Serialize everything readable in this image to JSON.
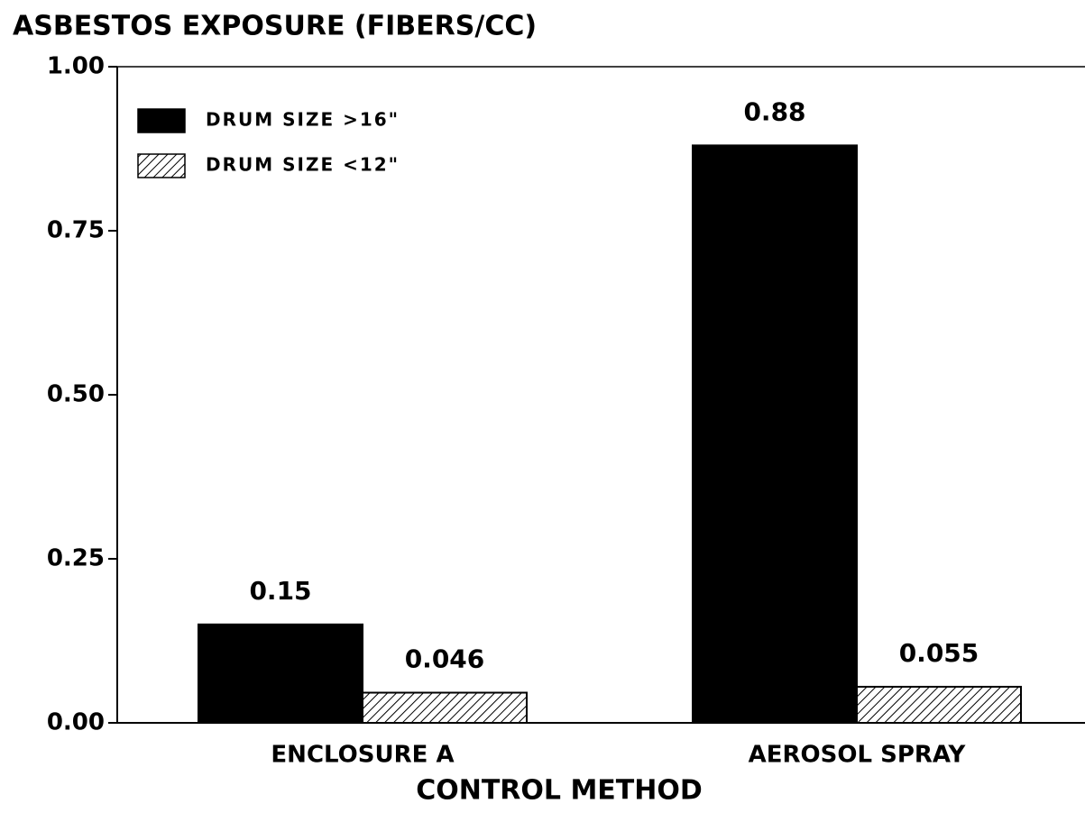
{
  "chart_data": {
    "type": "bar",
    "title": "ASBESTOS EXPOSURE (FIBERS/CC)",
    "x_label": "CONTROL METHOD",
    "categories": [
      "ENCLOSURE A",
      "AEROSOL SPRAY"
    ],
    "series": [
      {
        "name": "DRUM SIZE >16\"",
        "color": "#000000",
        "pattern": "solid",
        "values": [
          0.15,
          0.88
        ]
      },
      {
        "name": "DRUM SIZE <12\"",
        "color": "#000000",
        "pattern": "hatch",
        "values": [
          0.046,
          0.055
        ]
      }
    ],
    "ylim": [
      0,
      1
    ],
    "yticks": [
      {
        "value": 0,
        "label": "0.00"
      },
      {
        "value": 0.25,
        "label": "0.25"
      },
      {
        "value": 0.5,
        "label": "0.50"
      },
      {
        "value": 0.75,
        "label": "0.75"
      },
      {
        "value": 1,
        "label": "1.00"
      }
    ],
    "legend": "upper left",
    "grid": false
  }
}
